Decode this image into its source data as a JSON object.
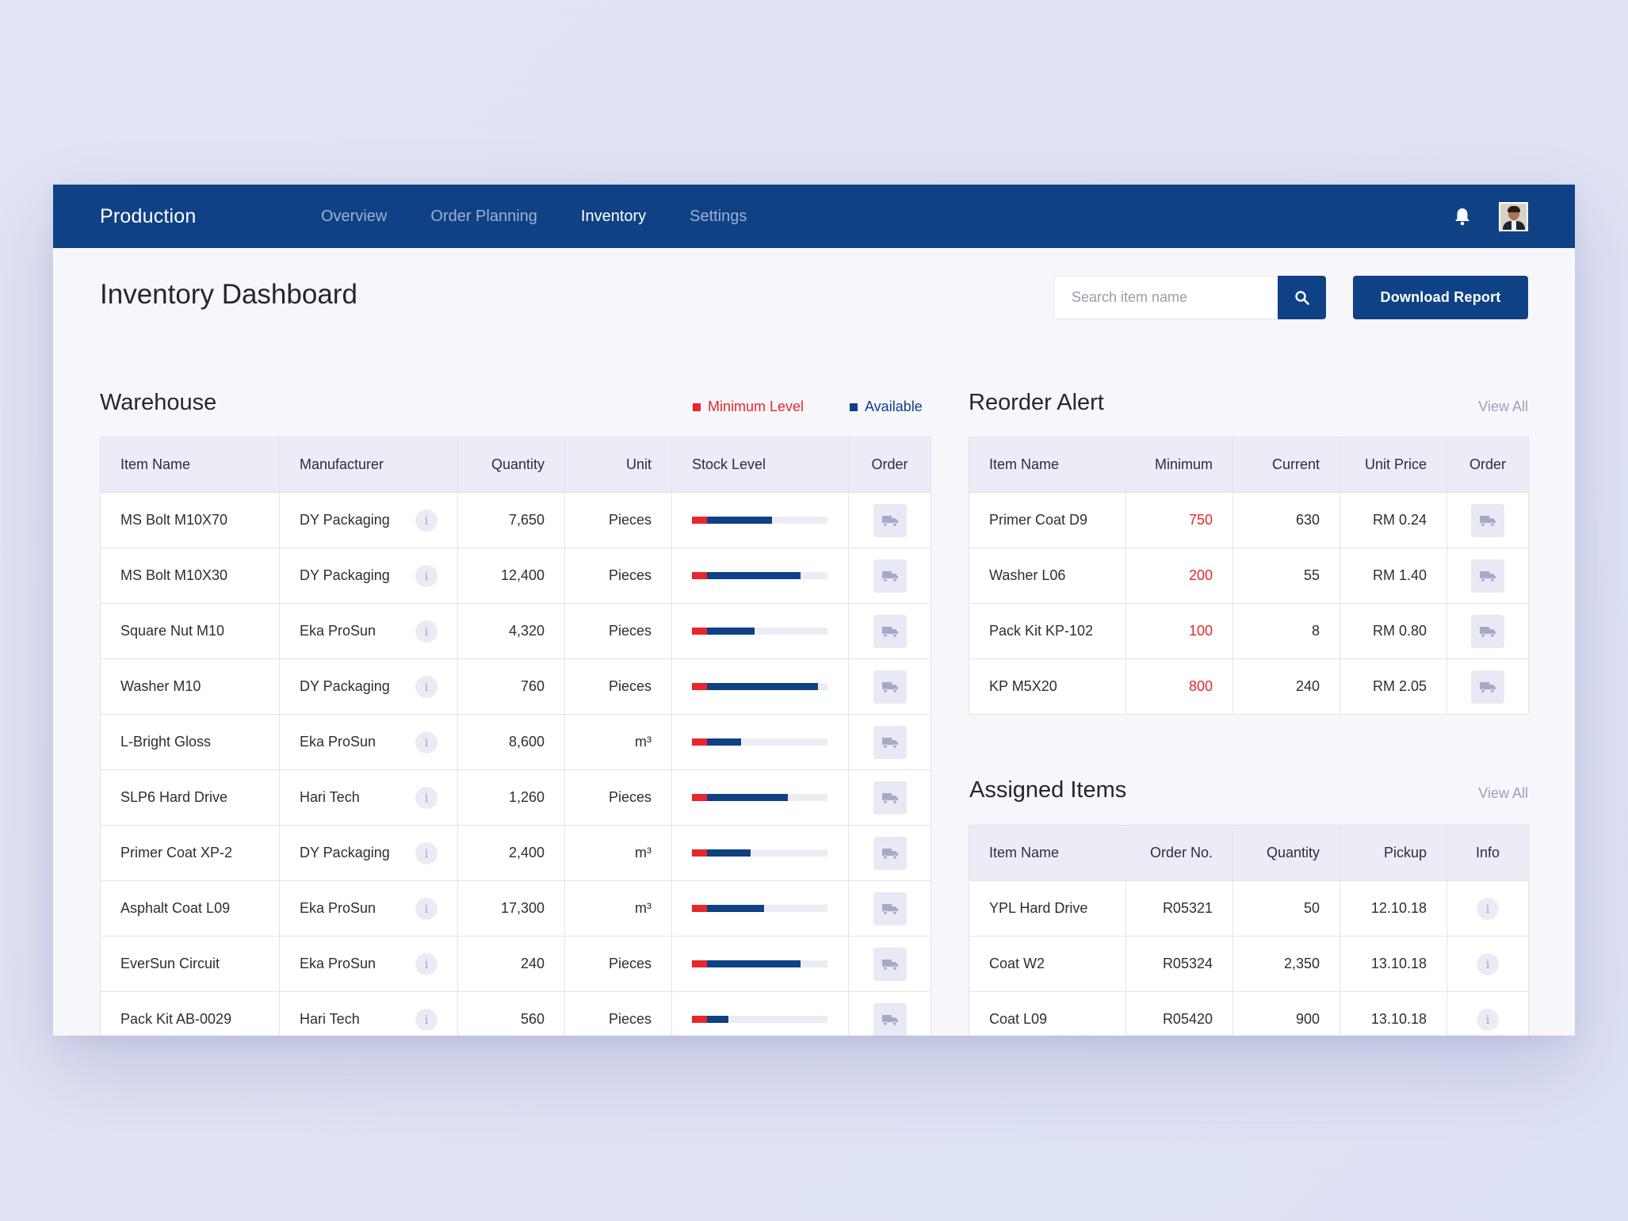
{
  "topbar": {
    "brand": "Production",
    "nav": [
      "Overview",
      "Order Planning",
      "Inventory",
      "Settings"
    ],
    "active_nav": "Inventory"
  },
  "page": {
    "title": "Inventory Dashboard",
    "search_placeholder": "Search item name",
    "download_label": "Download Report"
  },
  "colors": {
    "primary": "#0f4185",
    "minimum": "#e8272c",
    "available": "#0f4185"
  },
  "warehouse": {
    "title": "Warehouse",
    "legend_min": "Minimum Level",
    "legend_avail": "Available",
    "headers": [
      "Item Name",
      "Manufacturer",
      "Quantity",
      "Unit",
      "Stock Level",
      "Order"
    ],
    "rows": [
      {
        "name": "MS Bolt M10X70",
        "mfr": "DY Packaging",
        "qty": "7,650",
        "unit": "Pieces",
        "level": 0.59
      },
      {
        "name": "MS Bolt M10X30",
        "mfr": "DY Packaging",
        "qty": "12,400",
        "unit": "Pieces",
        "level": 0.8
      },
      {
        "name": "Square Nut M10",
        "mfr": "Eka ProSun",
        "qty": "4,320",
        "unit": "Pieces",
        "level": 0.46
      },
      {
        "name": "Washer M10",
        "mfr": "DY Packaging",
        "qty": "760",
        "unit": "Pieces",
        "level": 0.93
      },
      {
        "name": "L-Bright Gloss",
        "mfr": "Eka ProSun",
        "qty": "8,600",
        "unit": "m³",
        "level": 0.36
      },
      {
        "name": "SLP6 Hard Drive",
        "mfr": "Hari Tech",
        "qty": "1,260",
        "unit": "Pieces",
        "level": 0.71
      },
      {
        "name": "Primer Coat XP-2",
        "mfr": "DY Packaging",
        "qty": "2,400",
        "unit": "m³",
        "level": 0.43
      },
      {
        "name": "Asphalt Coat L09",
        "mfr": "Eka ProSun",
        "qty": "17,300",
        "unit": "m³",
        "level": 0.53
      },
      {
        "name": "EverSun Circuit",
        "mfr": "Eka ProSun",
        "qty": "240",
        "unit": "Pieces",
        "level": 0.8
      },
      {
        "name": "Pack Kit AB-0029",
        "mfr": "Hari Tech",
        "qty": "560",
        "unit": "Pieces",
        "level": 0.27
      }
    ]
  },
  "reorder": {
    "title": "Reorder Alert",
    "view_all": "View All",
    "headers": [
      "Item Name",
      "Minimum",
      "Current",
      "Unit Price",
      "Order"
    ],
    "rows": [
      {
        "name": "Primer Coat D9",
        "min": "750",
        "current": "630",
        "price": "RM 0.24"
      },
      {
        "name": "Washer L06",
        "min": "200",
        "current": "55",
        "price": "RM 1.40"
      },
      {
        "name": "Pack Kit KP-102",
        "min": "100",
        "current": "8",
        "price": "RM 0.80"
      },
      {
        "name": "KP M5X20",
        "min": "800",
        "current": "240",
        "price": "RM 2.05"
      }
    ]
  },
  "assigned": {
    "title": "Assigned Items",
    "view_all": "View All",
    "headers": [
      "Item Name",
      "Order No.",
      "Quantity",
      "Pickup",
      "Info"
    ],
    "rows": [
      {
        "name": "YPL Hard Drive",
        "order": "R05321",
        "qty": "50",
        "pickup": "12.10.18"
      },
      {
        "name": "Coat W2",
        "order": "R05324",
        "qty": "2,350",
        "pickup": "13.10.18"
      },
      {
        "name": "Coat L09",
        "order": "R05420",
        "qty": "900",
        "pickup": "13.10.18"
      }
    ]
  }
}
